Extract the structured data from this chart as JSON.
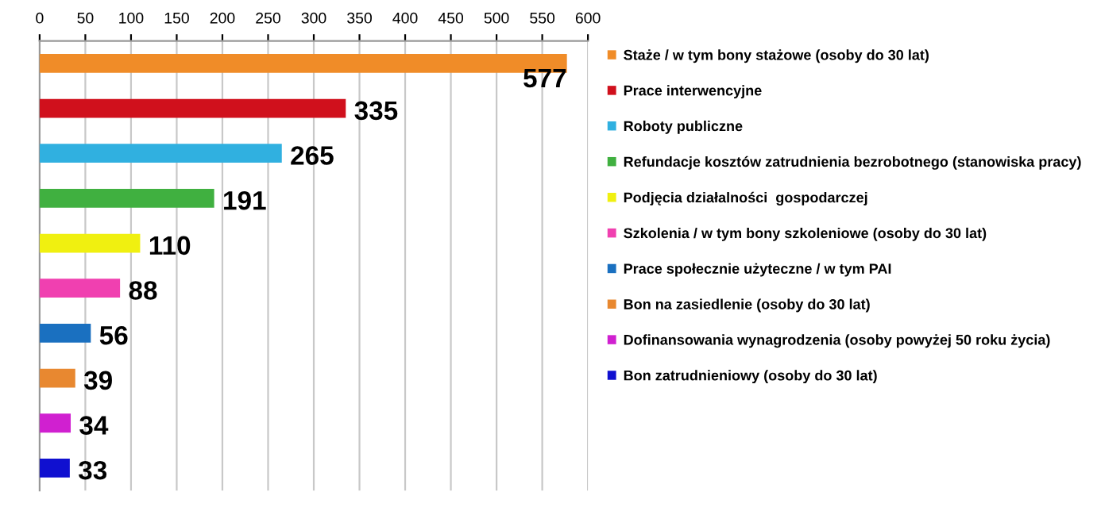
{
  "chart_data": {
    "type": "bar",
    "orientation": "horizontal",
    "categories": [
      null,
      null,
      null,
      null,
      null,
      null,
      null,
      null,
      null,
      null
    ],
    "series": [
      {
        "name": "Staże / w tym bony stażowe (osoby do 30 lat)",
        "color": "#f08c28",
        "values": [
          577,
          null,
          null,
          null,
          null,
          null,
          null,
          null,
          null,
          null
        ]
      },
      {
        "name": "Prace interwencyjne",
        "color": "#d0101c",
        "values": [
          null,
          335,
          null,
          null,
          null,
          null,
          null,
          null,
          null,
          null
        ]
      },
      {
        "name": "Roboty publiczne",
        "color": "#30b0e0",
        "values": [
          null,
          null,
          265,
          null,
          null,
          null,
          null,
          null,
          null,
          null
        ]
      },
      {
        "name": "Refundacje kosztów zatrudnienia bezrobotnego (stanowiska pracy)",
        "color": "#40b040",
        "values": [
          null,
          null,
          null,
          191,
          null,
          null,
          null,
          null,
          null,
          null
        ]
      },
      {
        "name": "Podjęcia działalności  gospodarczej",
        "color": "#f0f010",
        "values": [
          null,
          null,
          null,
          null,
          110,
          null,
          null,
          null,
          null,
          null
        ]
      },
      {
        "name": "Szkolenia / w tym bony szkoleniowe (osoby do 30 lat)",
        "color": "#f040b0",
        "values": [
          null,
          null,
          null,
          null,
          null,
          88,
          null,
          null,
          null,
          null
        ]
      },
      {
        "name": "Prace społecznie użyteczne / w tym PAI",
        "color": "#1a70c0",
        "values": [
          null,
          null,
          null,
          null,
          null,
          null,
          56,
          null,
          null,
          null
        ]
      },
      {
        "name": "Bon na zasiedlenie (osoby do 30 lat)",
        "color": "#e88830",
        "values": [
          null,
          null,
          null,
          null,
          null,
          null,
          null,
          39,
          null,
          null
        ]
      },
      {
        "name": "Dofinansowania wynagrodzenia (osoby powyżej 50 roku życia)",
        "color": "#d020d0",
        "values": [
          null,
          null,
          null,
          null,
          null,
          null,
          null,
          null,
          34,
          null
        ]
      },
      {
        "name": "Bon zatrudnieniowy (osoby do 30 lat)",
        "color": "#1010d0",
        "values": [
          null,
          null,
          null,
          null,
          null,
          null,
          null,
          null,
          null,
          33
        ]
      }
    ],
    "xlim": [
      0,
      600
    ],
    "xticks": [
      0,
      50,
      100,
      150,
      200,
      250,
      300,
      350,
      400,
      450,
      500,
      550,
      600
    ],
    "grid": "x",
    "legend": "right",
    "data_labels": true,
    "tick_labels": "x"
  }
}
